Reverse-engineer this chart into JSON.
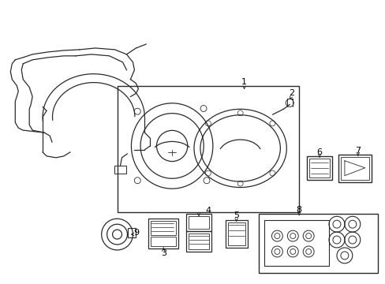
{
  "bg_color": "#ffffff",
  "line_color": "#2a2a2a",
  "fig_width": 4.89,
  "fig_height": 3.6,
  "dpi": 100
}
